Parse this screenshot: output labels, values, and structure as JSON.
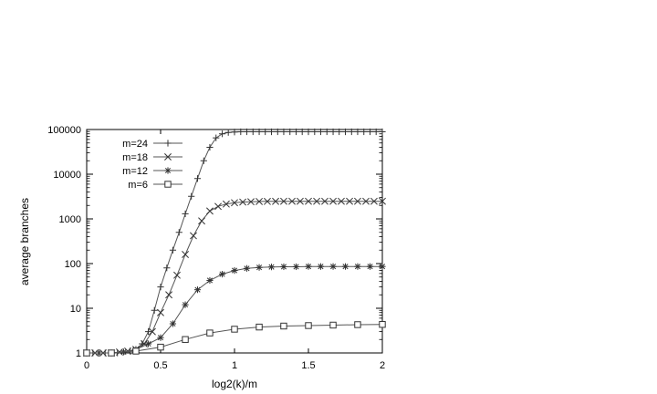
{
  "chart_data": {
    "type": "line",
    "title": "",
    "xlabel": "log2(k)/m",
    "ylabel": "average branches",
    "xlim": [
      0,
      2
    ],
    "ylim": [
      1,
      100000
    ],
    "yscale": "log",
    "x_ticks": [
      0,
      0.5,
      1,
      1.5,
      2
    ],
    "x_tick_labels": [
      "0",
      "0.5",
      "1",
      "1.5",
      "2"
    ],
    "y_ticks": [
      1,
      10,
      100,
      1000,
      10000,
      100000
    ],
    "y_tick_labels": [
      "1",
      "10",
      "100",
      "1000",
      "10000",
      "100000"
    ],
    "grid": false,
    "legend_position": "top-left",
    "series": [
      {
        "name": "m=24",
        "marker": "plus",
        "x": [
          0,
          0.042,
          0.083,
          0.125,
          0.167,
          0.208,
          0.25,
          0.292,
          0.333,
          0.375,
          0.417,
          0.458,
          0.5,
          0.542,
          0.583,
          0.625,
          0.667,
          0.708,
          0.75,
          0.792,
          0.833,
          0.875,
          0.917,
          0.958,
          1.0,
          1.042,
          1.083,
          1.125,
          1.167,
          1.208,
          1.25,
          1.292,
          1.333,
          1.375,
          1.417,
          1.458,
          1.5,
          1.542,
          1.583,
          1.625,
          1.667,
          1.708,
          1.75,
          1.792,
          1.833,
          1.875,
          1.917,
          1.958,
          2.0
        ],
        "values": [
          1,
          1,
          1,
          1,
          1,
          1,
          1.05,
          1.1,
          1.2,
          1.6,
          3,
          9,
          30,
          80,
          200,
          500,
          1300,
          3200,
          8000,
          20000,
          40000,
          65000,
          80000,
          86000,
          88000,
          89000,
          89000,
          89000,
          89000,
          89000,
          89000,
          89000,
          89000,
          89000,
          89000,
          89000,
          89000,
          89000,
          89000,
          89000,
          89000,
          89000,
          89000,
          89000,
          89000,
          89000,
          89000,
          89000,
          89000
        ]
      },
      {
        "name": "m=18",
        "marker": "cross",
        "x": [
          0,
          0.056,
          0.111,
          0.167,
          0.222,
          0.278,
          0.333,
          0.389,
          0.444,
          0.5,
          0.556,
          0.611,
          0.667,
          0.722,
          0.778,
          0.833,
          0.889,
          0.944,
          1.0,
          1.056,
          1.111,
          1.167,
          1.222,
          1.278,
          1.333,
          1.389,
          1.444,
          1.5,
          1.556,
          1.611,
          1.667,
          1.722,
          1.778,
          1.833,
          1.889,
          1.944,
          2.0
        ],
        "values": [
          1,
          1,
          1,
          1,
          1.05,
          1.1,
          1.2,
          1.6,
          3,
          8,
          20,
          55,
          160,
          420,
          900,
          1500,
          1900,
          2150,
          2300,
          2380,
          2420,
          2450,
          2460,
          2470,
          2480,
          2480,
          2480,
          2480,
          2480,
          2480,
          2480,
          2480,
          2480,
          2480,
          2480,
          2480,
          2480
        ]
      },
      {
        "name": "m=12",
        "marker": "star",
        "x": [
          0,
          0.083,
          0.167,
          0.25,
          0.333,
          0.417,
          0.5,
          0.583,
          0.667,
          0.75,
          0.833,
          0.917,
          1.0,
          1.083,
          1.167,
          1.25,
          1.333,
          1.417,
          1.5,
          1.583,
          1.667,
          1.75,
          1.833,
          1.917,
          2.0
        ],
        "values": [
          1,
          1,
          1,
          1.05,
          1.2,
          1.6,
          2.2,
          4.5,
          12,
          26,
          42,
          58,
          70,
          78,
          82,
          84,
          85,
          85,
          86,
          86,
          86,
          86,
          86,
          86,
          86
        ]
      },
      {
        "name": "m=6",
        "marker": "square",
        "x": [
          0,
          0.167,
          0.333,
          0.5,
          0.667,
          0.833,
          1.0,
          1.167,
          1.333,
          1.5,
          1.667,
          1.833,
          2.0
        ],
        "values": [
          1,
          1,
          1.1,
          1.35,
          2,
          2.8,
          3.4,
          3.8,
          4.0,
          4.1,
          4.2,
          4.3,
          4.35
        ]
      }
    ]
  }
}
